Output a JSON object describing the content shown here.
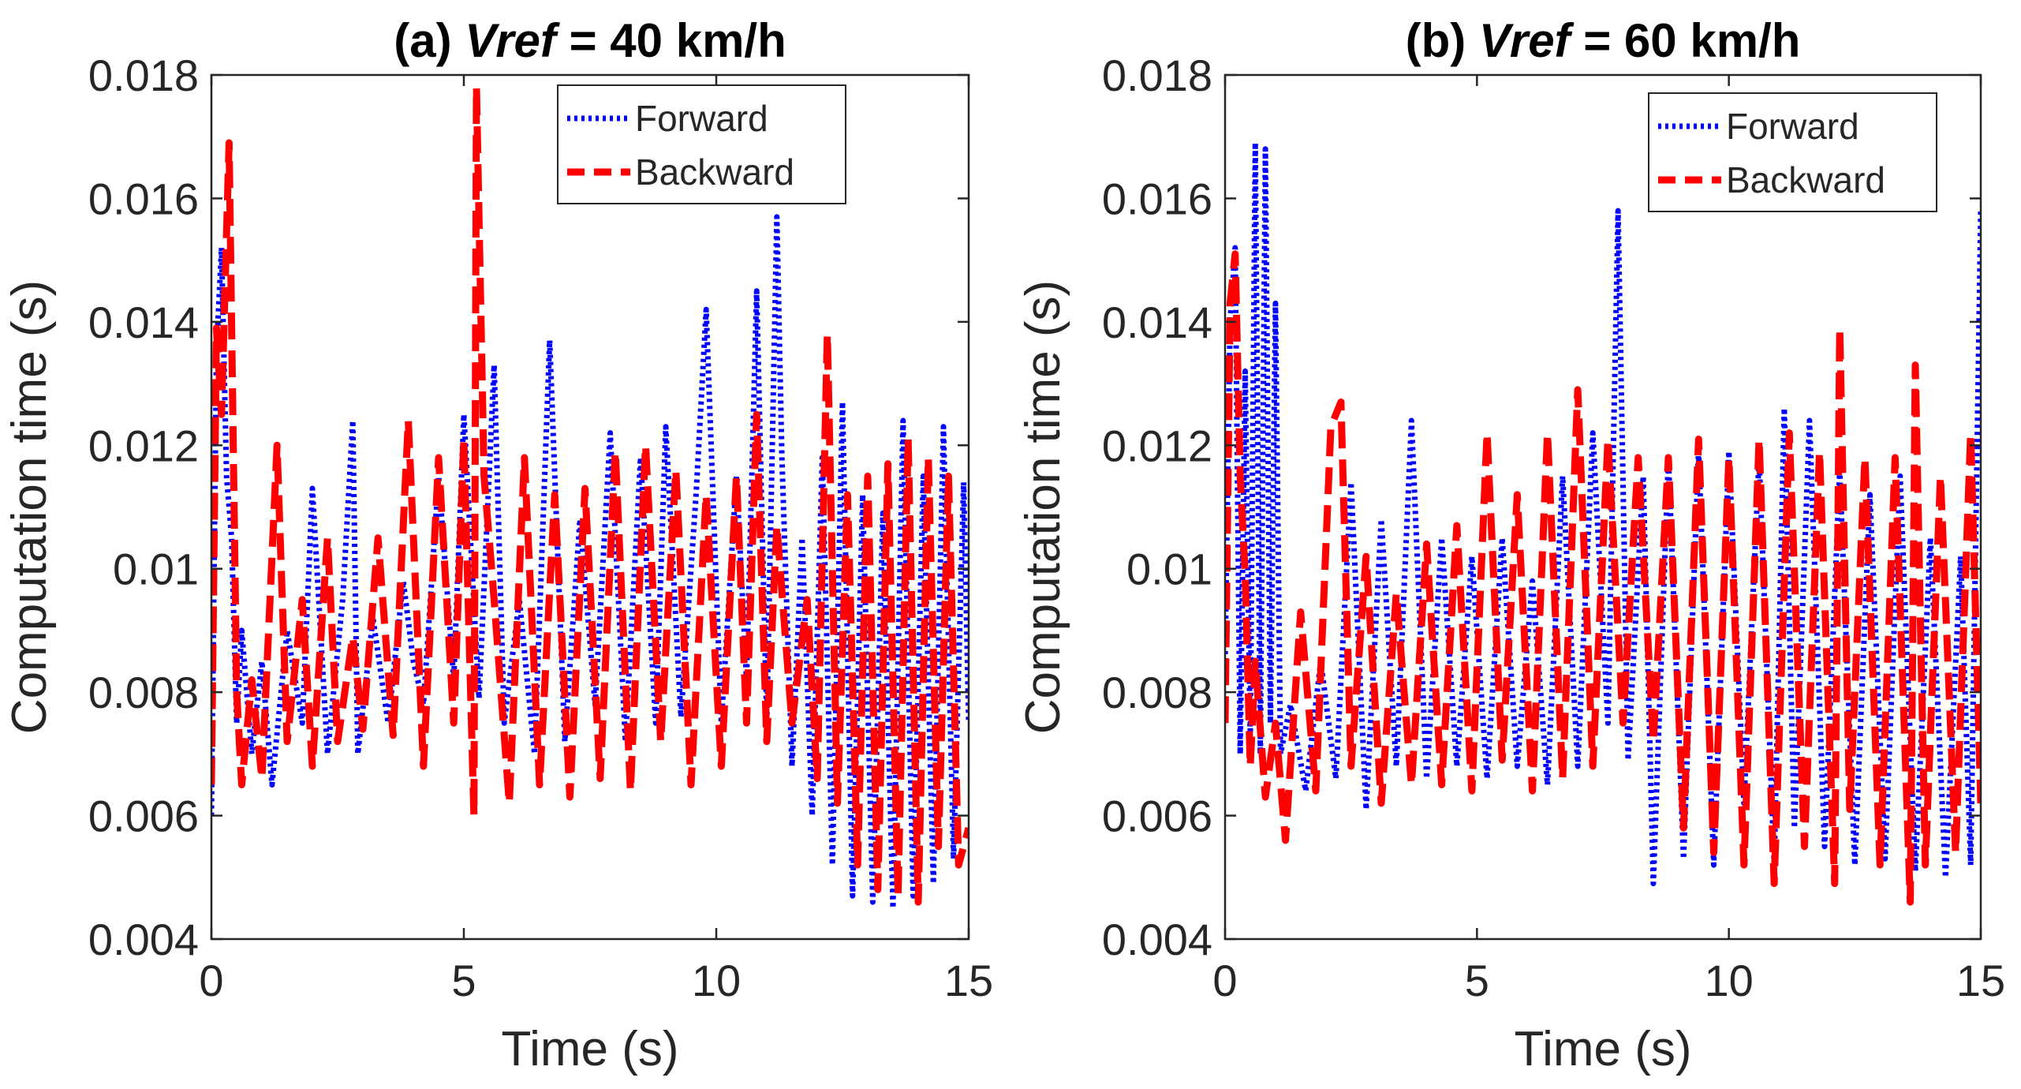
{
  "chart_data": [
    {
      "type": "line",
      "title_prefix": "(a) ",
      "title_var": "Vref",
      "title_suffix": " = 40 km/h",
      "xlabel": "Time (s)",
      "ylabel": "Computation time (s)",
      "xlim": [
        0,
        15
      ],
      "ylim": [
        0.004,
        0.018
      ],
      "xticks": [
        0,
        5,
        10,
        15
      ],
      "yticks": [
        0.004,
        0.006,
        0.008,
        0.01,
        0.012,
        0.014,
        0.016,
        0.018
      ],
      "ytick_labels": [
        "0.004",
        "0.006",
        "0.008",
        "0.01",
        "0.012",
        "0.014",
        "0.016",
        "0.018"
      ],
      "legend_position": "top-right",
      "series": [
        {
          "name": "Forward",
          "style": "dotted",
          "color": "#0000ff",
          "x": [
            0,
            0.1,
            0.2,
            0.3,
            0.4,
            0.5,
            0.6,
            0.8,
            1.0,
            1.2,
            1.5,
            1.8,
            2.0,
            2.3,
            2.6,
            2.8,
            2.9,
            3.2,
            3.5,
            3.8,
            4.0,
            4.2,
            4.5,
            4.8,
            5.0,
            5.3,
            5.6,
            5.8,
            6.1,
            6.4,
            6.7,
            7.0,
            7.3,
            7.6,
            7.9,
            8.2,
            8.5,
            8.8,
            9.0,
            9.3,
            9.6,
            9.8,
            10.1,
            10.4,
            10.6,
            10.8,
            11.0,
            11.2,
            11.3,
            11.5,
            11.7,
            11.9,
            12.1,
            12.3,
            12.5,
            12.7,
            12.9,
            13.1,
            13.3,
            13.5,
            13.7,
            13.9,
            14.1,
            14.3,
            14.5,
            14.7,
            14.9,
            15.0
          ],
          "y": [
            0.006,
            0.0135,
            0.0152,
            0.0115,
            0.0105,
            0.0075,
            0.009,
            0.007,
            0.0085,
            0.0065,
            0.009,
            0.0075,
            0.0113,
            0.007,
            0.0095,
            0.0124,
            0.007,
            0.0092,
            0.0075,
            0.0098,
            0.0085,
            0.0078,
            0.0115,
            0.0082,
            0.0125,
            0.0079,
            0.0133,
            0.0075,
            0.0095,
            0.007,
            0.0137,
            0.0072,
            0.0108,
            0.0078,
            0.0122,
            0.0072,
            0.0118,
            0.0075,
            0.0123,
            0.0076,
            0.0112,
            0.0142,
            0.0075,
            0.0115,
            0.0082,
            0.0145,
            0.0075,
            0.0157,
            0.0118,
            0.0068,
            0.0105,
            0.006,
            0.0118,
            0.0052,
            0.0127,
            0.0047,
            0.0112,
            0.0046,
            0.0109,
            0.0045,
            0.0124,
            0.0047,
            0.0115,
            0.0049,
            0.0123,
            0.0053,
            0.0114,
            0.0075
          ]
        },
        {
          "name": "Backward",
          "style": "dashed",
          "color": "#ff0000",
          "x": [
            0,
            0.1,
            0.2,
            0.35,
            0.5,
            0.6,
            0.8,
            1.0,
            1.3,
            1.5,
            1.8,
            2.0,
            2.3,
            2.5,
            2.8,
            3.0,
            3.3,
            3.6,
            3.9,
            4.2,
            4.5,
            4.8,
            5.0,
            5.2,
            5.25,
            5.4,
            5.6,
            5.9,
            6.2,
            6.5,
            6.8,
            7.1,
            7.4,
            7.7,
            8.0,
            8.3,
            8.6,
            8.9,
            9.2,
            9.5,
            9.8,
            10.1,
            10.4,
            10.6,
            10.8,
            11.0,
            11.2,
            11.5,
            11.8,
            12.0,
            12.2,
            12.4,
            12.6,
            12.8,
            13.0,
            13.2,
            13.4,
            13.6,
            13.8,
            14.0,
            14.2,
            14.4,
            14.6,
            14.8,
            15.0
          ],
          "y": [
            0.0065,
            0.0139,
            0.0125,
            0.0169,
            0.008,
            0.0065,
            0.0082,
            0.0066,
            0.012,
            0.0072,
            0.0095,
            0.0068,
            0.0105,
            0.0072,
            0.0089,
            0.0074,
            0.0105,
            0.0073,
            0.0124,
            0.0068,
            0.0118,
            0.0075,
            0.0121,
            0.006,
            0.0178,
            0.0115,
            0.0095,
            0.0062,
            0.0118,
            0.0065,
            0.0112,
            0.0063,
            0.0113,
            0.0066,
            0.0119,
            0.0064,
            0.012,
            0.0072,
            0.0116,
            0.0065,
            0.0112,
            0.0068,
            0.0115,
            0.0075,
            0.0125,
            0.0072,
            0.0107,
            0.0075,
            0.0095,
            0.0066,
            0.0138,
            0.0062,
            0.0112,
            0.0052,
            0.0115,
            0.0048,
            0.0117,
            0.0047,
            0.0121,
            0.0046,
            0.0118,
            0.0055,
            0.0115,
            0.0052,
            0.0058
          ]
        }
      ]
    },
    {
      "type": "line",
      "title_prefix": "(b) ",
      "title_var": "Vref",
      "title_suffix": " = 60 km/h",
      "xlabel": "Time (s)",
      "ylabel": "Computation time (s)",
      "xlim": [
        0,
        15
      ],
      "ylim": [
        0.004,
        0.018
      ],
      "xticks": [
        0,
        5,
        10,
        15
      ],
      "yticks": [
        0.004,
        0.006,
        0.008,
        0.01,
        0.012,
        0.014,
        0.016,
        0.018
      ],
      "ytick_labels": [
        "0.004",
        "0.006",
        "0.008",
        "0.01",
        "0.012",
        "0.014",
        "0.016",
        "0.018"
      ],
      "legend_position": "top-right",
      "series": [
        {
          "name": "Forward",
          "style": "dotted",
          "color": "#0000ff",
          "x": [
            0,
            0.1,
            0.2,
            0.3,
            0.4,
            0.5,
            0.6,
            0.7,
            0.8,
            0.9,
            1.0,
            1.1,
            1.3,
            1.6,
            1.9,
            2.2,
            2.5,
            2.8,
            3.1,
            3.4,
            3.7,
            4.0,
            4.3,
            4.6,
            4.9,
            5.2,
            5.5,
            5.8,
            6.1,
            6.4,
            6.7,
            7.0,
            7.3,
            7.6,
            7.8,
            8.0,
            8.3,
            8.5,
            8.8,
            9.1,
            9.4,
            9.7,
            10.0,
            10.3,
            10.6,
            10.9,
            11.1,
            11.3,
            11.6,
            11.9,
            12.2,
            12.5,
            12.8,
            13.1,
            13.4,
            13.7,
            14.0,
            14.3,
            14.6,
            14.8,
            15.0
          ],
          "y": [
            0.0085,
            0.014,
            0.0152,
            0.007,
            0.0132,
            0.0072,
            0.0169,
            0.007,
            0.0168,
            0.0075,
            0.0143,
            0.007,
            0.0078,
            0.0064,
            0.0085,
            0.0066,
            0.0114,
            0.0061,
            0.0108,
            0.0068,
            0.0124,
            0.0066,
            0.0105,
            0.0068,
            0.0102,
            0.0066,
            0.0105,
            0.0068,
            0.0098,
            0.0065,
            0.0115,
            0.0068,
            0.0122,
            0.0075,
            0.0158,
            0.0069,
            0.0115,
            0.0049,
            0.0118,
            0.0053,
            0.0119,
            0.0052,
            0.0119,
            0.0062,
            0.0118,
            0.0052,
            0.0126,
            0.0058,
            0.0124,
            0.0055,
            0.0116,
            0.0052,
            0.0112,
            0.0053,
            0.0115,
            0.0051,
            0.0105,
            0.005,
            0.0102,
            0.0052,
            0.0158
          ]
        },
        {
          "name": "Backward",
          "style": "dashed",
          "color": "#ff0000",
          "x": [
            0,
            0.1,
            0.2,
            0.3,
            0.4,
            0.5,
            0.6,
            0.8,
            1.0,
            1.2,
            1.5,
            1.8,
            2.1,
            2.3,
            2.5,
            2.8,
            3.1,
            3.4,
            3.7,
            4.0,
            4.3,
            4.6,
            4.9,
            5.2,
            5.5,
            5.8,
            6.1,
            6.4,
            6.7,
            7.0,
            7.3,
            7.6,
            7.9,
            8.2,
            8.5,
            8.8,
            9.1,
            9.4,
            9.7,
            10.0,
            10.3,
            10.6,
            10.9,
            11.2,
            11.5,
            11.8,
            12.1,
            12.2,
            12.4,
            12.7,
            13.0,
            13.3,
            13.6,
            13.7,
            13.9,
            14.2,
            14.5,
            14.8,
            15.0
          ],
          "y": [
            0.0075,
            0.0143,
            0.0151,
            0.0115,
            0.0099,
            0.0068,
            0.0085,
            0.0063,
            0.0075,
            0.0056,
            0.0093,
            0.0064,
            0.0123,
            0.0127,
            0.0068,
            0.0102,
            0.0062,
            0.0096,
            0.0065,
            0.0104,
            0.0065,
            0.0107,
            0.0064,
            0.0122,
            0.0069,
            0.0112,
            0.0064,
            0.0122,
            0.0066,
            0.0129,
            0.0068,
            0.0121,
            0.0075,
            0.0118,
            0.0072,
            0.0118,
            0.0058,
            0.0121,
            0.0054,
            0.0118,
            0.0052,
            0.0121,
            0.0049,
            0.0122,
            0.0055,
            0.0119,
            0.0049,
            0.0139,
            0.0061,
            0.0118,
            0.0052,
            0.0118,
            0.0046,
            0.0133,
            0.0052,
            0.0115,
            0.0054,
            0.0122,
            0.0062
          ]
        }
      ]
    }
  ],
  "colors": {
    "axis": "#262626",
    "forward": "#0000ff",
    "backward": "#ff0000"
  }
}
